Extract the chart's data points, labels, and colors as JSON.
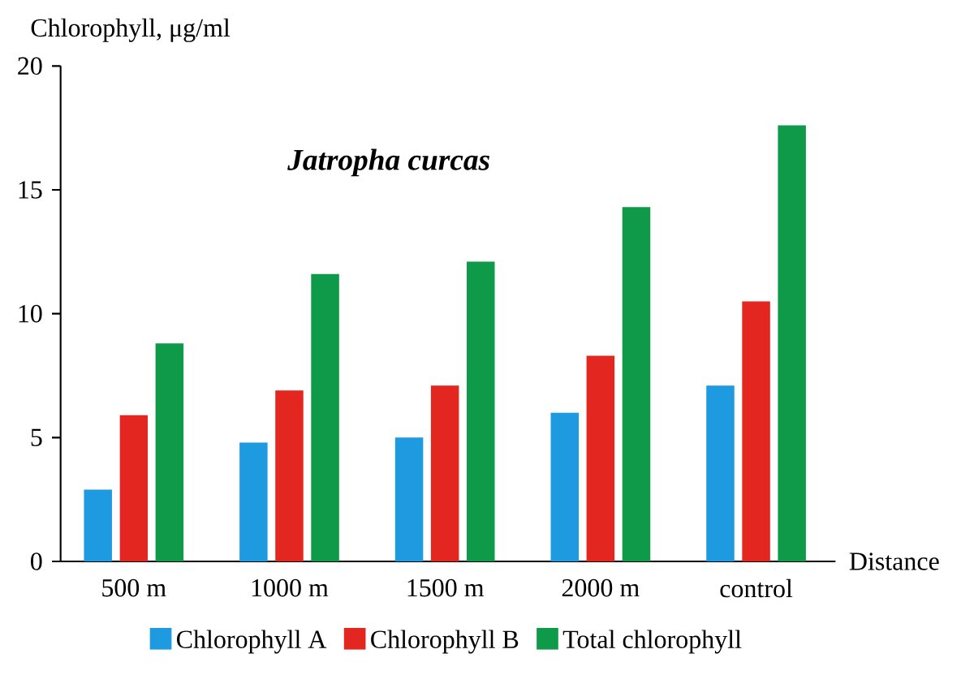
{
  "chart_data": {
    "type": "bar",
    "title": "Jatropha curcas",
    "xlabel": "Distance",
    "ylabel": "Chlorophyll, μg/ml",
    "categories": [
      "500 m",
      "1000 m",
      "1500 m",
      "2000 m",
      "control"
    ],
    "series": [
      {
        "name": "Chlorophyll A",
        "color": "#1e9be0",
        "values": [
          2.9,
          4.8,
          5.0,
          6.0,
          7.1
        ]
      },
      {
        "name": "Chlorophyll B",
        "color": "#e3261f",
        "values": [
          5.9,
          6.9,
          7.1,
          8.3,
          10.5
        ]
      },
      {
        "name": "Total chlorophyll",
        "color": "#0e9a48",
        "values": [
          8.8,
          11.6,
          12.1,
          14.3,
          17.6
        ]
      }
    ],
    "ylim": [
      0,
      20
    ],
    "yticks": [
      0,
      5,
      10,
      15,
      20
    ],
    "legend": "bottom"
  }
}
